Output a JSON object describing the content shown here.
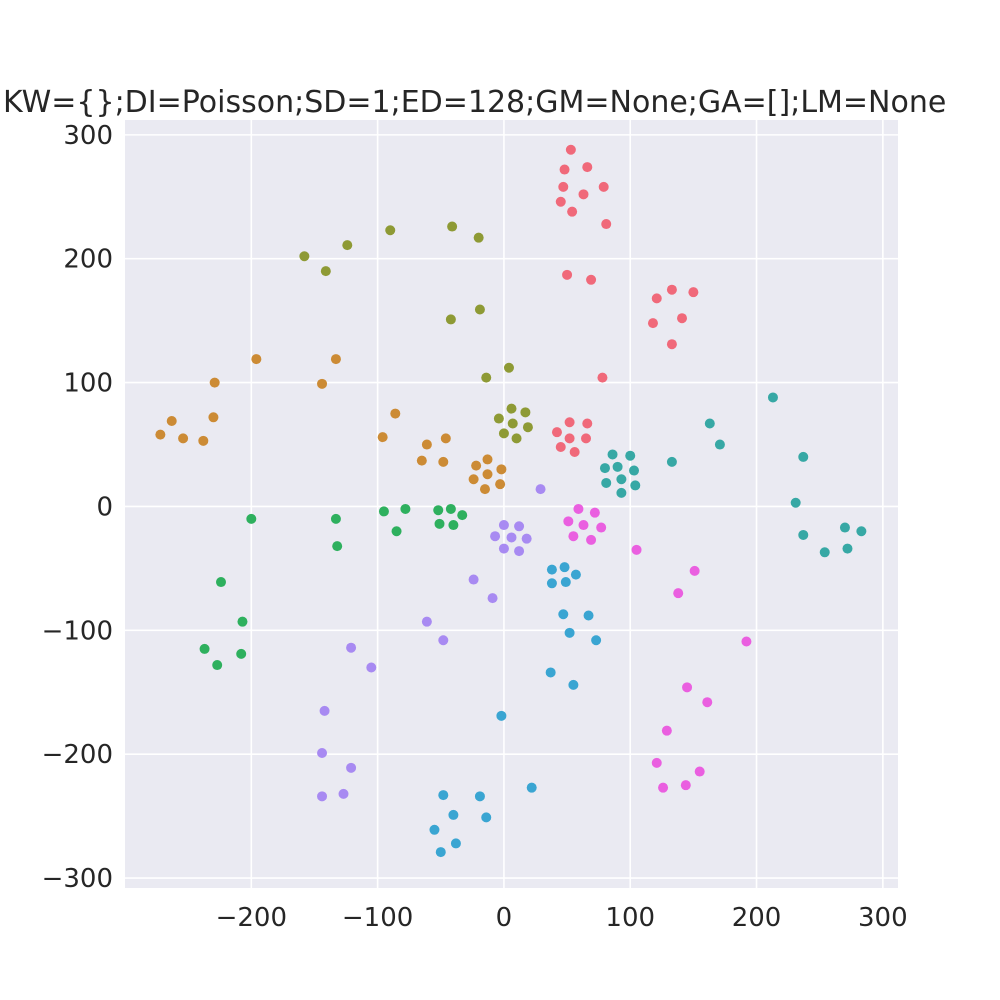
{
  "chart_data": {
    "type": "scatter",
    "title": "KW={};DI=Poisson;SD=1;ED=128;GM=None;GA=[];LM=None",
    "xlabel": "",
    "ylabel": "",
    "xlim": [
      -300,
      312
    ],
    "ylim": [
      -308,
      312
    ],
    "grid": true,
    "legend": "none",
    "xticks": [
      {
        "value": -200,
        "label": "−200"
      },
      {
        "value": -100,
        "label": "−100"
      },
      {
        "value": 0,
        "label": "0"
      },
      {
        "value": 100,
        "label": "100"
      },
      {
        "value": 200,
        "label": "200"
      },
      {
        "value": 300,
        "label": "300"
      }
    ],
    "yticks": [
      {
        "value": 300,
        "label": "300"
      },
      {
        "value": 200,
        "label": "200"
      },
      {
        "value": 100,
        "label": "100"
      },
      {
        "value": 0,
        "label": "0"
      },
      {
        "value": -100,
        "label": "−100"
      },
      {
        "value": -200,
        "label": "−200"
      },
      {
        "value": -300,
        "label": "−300"
      }
    ],
    "colors": {
      "background": "#eaeaf2",
      "grid": "#ffffff",
      "text": "#262626"
    },
    "series": [
      {
        "color": "#f0697a",
        "points": [
          [
            53,
            288
          ],
          [
            66,
            274
          ],
          [
            48,
            272
          ],
          [
            47,
            258
          ],
          [
            79,
            258
          ],
          [
            63,
            252
          ],
          [
            45,
            246
          ],
          [
            54,
            238
          ],
          [
            81,
            228
          ],
          [
            50,
            187
          ],
          [
            69,
            183
          ],
          [
            121,
            168
          ],
          [
            133,
            175
          ],
          [
            150,
            173
          ],
          [
            118,
            148
          ],
          [
            141,
            152
          ],
          [
            133,
            131
          ],
          [
            78,
            104
          ],
          [
            52,
            68
          ],
          [
            66,
            67
          ],
          [
            42,
            60
          ],
          [
            52,
            55
          ],
          [
            65,
            55
          ],
          [
            45,
            48
          ],
          [
            56,
            44
          ]
        ]
      },
      {
        "color": "#cc8b35",
        "points": [
          [
            -196,
            119
          ],
          [
            -133,
            119
          ],
          [
            -229,
            100
          ],
          [
            -144,
            99
          ],
          [
            -230,
            72
          ],
          [
            -86,
            75
          ],
          [
            -263,
            69
          ],
          [
            -272,
            58
          ],
          [
            -254,
            55
          ],
          [
            -238,
            53
          ],
          [
            -96,
            56
          ],
          [
            -61,
            50
          ],
          [
            -46,
            55
          ],
          [
            -65,
            37
          ],
          [
            -48,
            36
          ],
          [
            -13,
            38
          ],
          [
            -22,
            33
          ],
          [
            -2,
            30
          ],
          [
            -13,
            26
          ],
          [
            -24,
            22
          ],
          [
            -15,
            14
          ],
          [
            -3,
            18
          ]
        ]
      },
      {
        "color": "#8e9a35",
        "points": [
          [
            -90,
            223
          ],
          [
            -41,
            226
          ],
          [
            -20,
            217
          ],
          [
            -124,
            211
          ],
          [
            -158,
            202
          ],
          [
            -141,
            190
          ],
          [
            -19,
            159
          ],
          [
            -42,
            151
          ],
          [
            4,
            112
          ],
          [
            -14,
            104
          ],
          [
            6,
            79
          ],
          [
            17,
            76
          ],
          [
            -4,
            71
          ],
          [
            7,
            67
          ],
          [
            19,
            64
          ],
          [
            0,
            59
          ],
          [
            10,
            55
          ]
        ]
      },
      {
        "color": "#2eb05e",
        "points": [
          [
            -200,
            -10
          ],
          [
            -133,
            -10
          ],
          [
            -95,
            -4
          ],
          [
            -78,
            -2
          ],
          [
            -52,
            -3
          ],
          [
            -42,
            -2
          ],
          [
            -33,
            -7
          ],
          [
            -51,
            -14
          ],
          [
            -40,
            -15
          ],
          [
            -85,
            -20
          ],
          [
            -132,
            -32
          ],
          [
            -224,
            -61
          ],
          [
            -207,
            -93
          ],
          [
            -237,
            -115
          ],
          [
            -208,
            -119
          ],
          [
            -227,
            -128
          ]
        ]
      },
      {
        "color": "#37a8a5",
        "points": [
          [
            213,
            88
          ],
          [
            163,
            67
          ],
          [
            171,
            50
          ],
          [
            86,
            42
          ],
          [
            100,
            41
          ],
          [
            133,
            36
          ],
          [
            80,
            31
          ],
          [
            90,
            32
          ],
          [
            103,
            29
          ],
          [
            93,
            22
          ],
          [
            81,
            19
          ],
          [
            104,
            17
          ],
          [
            93,
            11
          ],
          [
            237,
            40
          ],
          [
            231,
            3
          ],
          [
            237,
            -23
          ],
          [
            270,
            -17
          ],
          [
            283,
            -20
          ],
          [
            272,
            -34
          ],
          [
            254,
            -37
          ]
        ]
      },
      {
        "color": "#3aa5d2",
        "points": [
          [
            38,
            -51
          ],
          [
            48,
            -49
          ],
          [
            57,
            -55
          ],
          [
            38,
            -62
          ],
          [
            49,
            -61
          ],
          [
            47,
            -87
          ],
          [
            67,
            -88
          ],
          [
            52,
            -102
          ],
          [
            73,
            -108
          ],
          [
            37,
            -134
          ],
          [
            55,
            -144
          ],
          [
            -2,
            -169
          ],
          [
            22,
            -227
          ],
          [
            -48,
            -233
          ],
          [
            -19,
            -234
          ],
          [
            -40,
            -249
          ],
          [
            -14,
            -251
          ],
          [
            -55,
            -261
          ],
          [
            -38,
            -272
          ],
          [
            -50,
            -279
          ]
        ]
      },
      {
        "color": "#a88af2",
        "points": [
          [
            29,
            14
          ],
          [
            0,
            -15
          ],
          [
            12,
            -16
          ],
          [
            -7,
            -24
          ],
          [
            6,
            -25
          ],
          [
            18,
            -26
          ],
          [
            0,
            -34
          ],
          [
            12,
            -36
          ],
          [
            -24,
            -59
          ],
          [
            -9,
            -74
          ],
          [
            -61,
            -93
          ],
          [
            -48,
            -108
          ],
          [
            -121,
            -114
          ],
          [
            -105,
            -130
          ],
          [
            -142,
            -165
          ],
          [
            -144,
            -199
          ],
          [
            -121,
            -211
          ],
          [
            -127,
            -232
          ],
          [
            -144,
            -234
          ]
        ]
      },
      {
        "color": "#ea5fe0",
        "points": [
          [
            59,
            -2
          ],
          [
            72,
            -5
          ],
          [
            51,
            -12
          ],
          [
            63,
            -15
          ],
          [
            77,
            -17
          ],
          [
            55,
            -24
          ],
          [
            69,
            -27
          ],
          [
            105,
            -35
          ],
          [
            151,
            -52
          ],
          [
            138,
            -70
          ],
          [
            192,
            -109
          ],
          [
            145,
            -146
          ],
          [
            161,
            -158
          ],
          [
            129,
            -181
          ],
          [
            121,
            -207
          ],
          [
            155,
            -214
          ],
          [
            144,
            -225
          ],
          [
            126,
            -227
          ]
        ]
      }
    ]
  }
}
